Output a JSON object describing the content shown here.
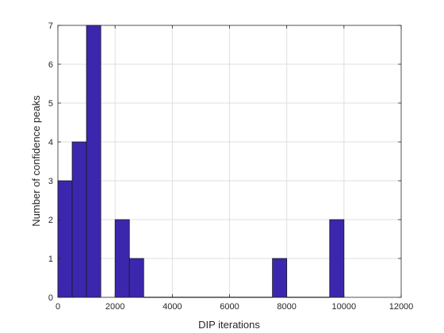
{
  "chart_data": {
    "type": "bar",
    "title": "",
    "xlabel": "DIP iterations",
    "ylabel": "Number of confidence peaks",
    "xlim": [
      0,
      12000
    ],
    "ylim": [
      0,
      7
    ],
    "xticks": [
      0,
      2000,
      4000,
      6000,
      8000,
      10000,
      12000
    ],
    "yticks": [
      0,
      1,
      2,
      3,
      4,
      5,
      6,
      7
    ],
    "grid": true,
    "bin_width": 500,
    "bins": [
      {
        "start": 0,
        "end": 500,
        "count": 3
      },
      {
        "start": 500,
        "end": 1000,
        "count": 4
      },
      {
        "start": 1000,
        "end": 1500,
        "count": 7
      },
      {
        "start": 2000,
        "end": 2500,
        "count": 2
      },
      {
        "start": 2500,
        "end": 3000,
        "count": 1
      },
      {
        "start": 3000,
        "end": 7500,
        "count": 0
      },
      {
        "start": 7500,
        "end": 8000,
        "count": 1
      },
      {
        "start": 8000,
        "end": 9500,
        "count": 0
      },
      {
        "start": 9500,
        "end": 10000,
        "count": 2
      }
    ],
    "colors": {
      "bar_fill": "#3b27ad",
      "bar_edge": "#1a1a1a",
      "grid": "#dfdfdf",
      "axis": "#262626"
    }
  }
}
